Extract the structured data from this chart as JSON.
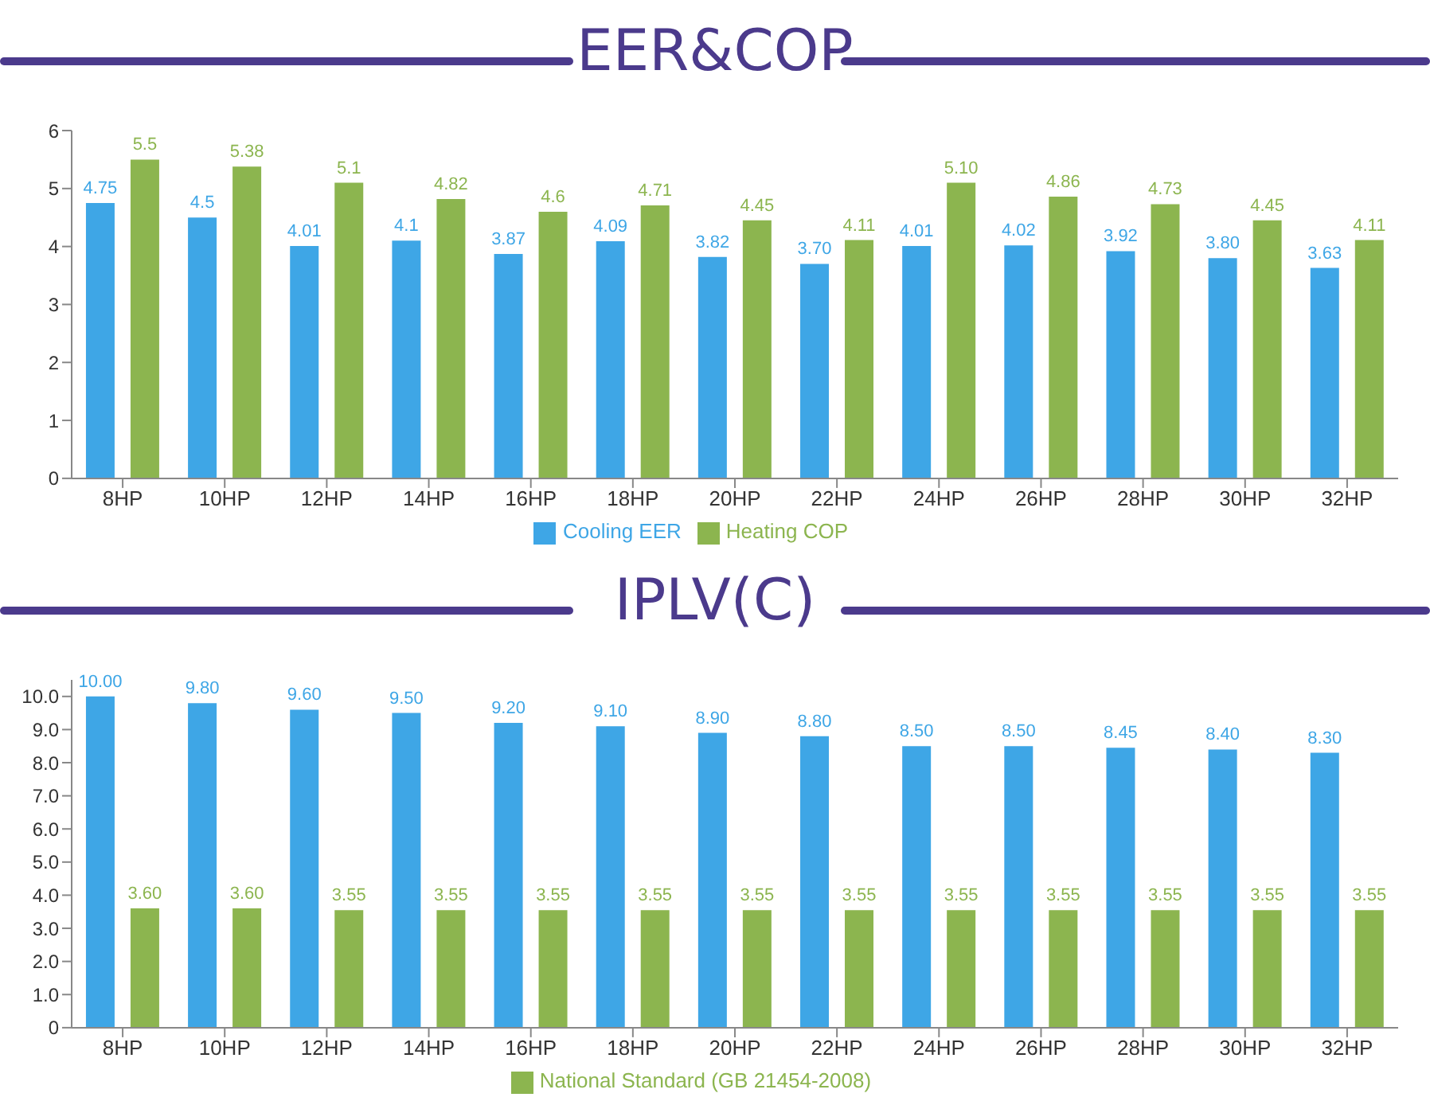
{
  "chart_data": [
    {
      "type": "bar",
      "title": "EER&COP",
      "categories": [
        "8HP",
        "10HP",
        "12HP",
        "14HP",
        "16HP",
        "18HP",
        "20HP",
        "22HP",
        "24HP",
        "26HP",
        "28HP",
        "30HP",
        "32HP"
      ],
      "series": [
        {
          "name": "Cooling EER",
          "color": "#3ea6e6",
          "values": [
            4.75,
            4.5,
            4.01,
            4.1,
            3.87,
            4.09,
            3.82,
            3.7,
            4.01,
            4.02,
            3.92,
            3.8,
            3.63
          ],
          "value_labels": [
            "4.75",
            "4.5",
            "4.01",
            "4.1",
            "3.87",
            "4.09",
            "3.82",
            "3.70",
            "4.01",
            "4.02",
            "3.92",
            "3.80",
            "3.63"
          ]
        },
        {
          "name": "Heating COP",
          "color": "#8cb54f",
          "values": [
            5.5,
            5.38,
            5.1,
            4.82,
            4.6,
            4.71,
            4.45,
            4.11,
            5.1,
            4.86,
            4.73,
            4.45,
            4.11
          ],
          "value_labels": [
            "5.5",
            "5.38",
            "5.1",
            "4.82",
            "4.6",
            "4.71",
            "4.45",
            "4.11",
            "5.10",
            "4.86",
            "4.73",
            "4.45",
            "4.11"
          ]
        }
      ],
      "ylim": [
        0,
        6
      ],
      "yticks": [
        0,
        1,
        2,
        3,
        4,
        5,
        6
      ],
      "grid": false,
      "legend": "bottom"
    },
    {
      "type": "bar",
      "title": "IPLV(C)",
      "categories": [
        "8HP",
        "10HP",
        "12HP",
        "14HP",
        "16HP",
        "18HP",
        "20HP",
        "22HP",
        "24HP",
        "26HP",
        "28HP",
        "30HP",
        "32HP"
      ],
      "series": [
        {
          "color": "#3ea6e6",
          "values": [
            10.0,
            9.8,
            9.6,
            9.5,
            9.2,
            9.1,
            8.9,
            8.8,
            8.5,
            8.5,
            8.45,
            8.4,
            8.3
          ],
          "value_labels": [
            "10.00",
            "9.80",
            "9.60",
            "9.50",
            "9.20",
            "9.10",
            "8.90",
            "8.80",
            "8.50",
            "8.50",
            "8.45",
            "8.40",
            "8.30"
          ]
        },
        {
          "name": "National Standard (GB 21454-2008)",
          "color": "#8cb54f",
          "values": [
            3.6,
            3.6,
            3.55,
            3.55,
            3.55,
            3.55,
            3.55,
            3.55,
            3.55,
            3.55,
            3.55,
            3.55,
            3.55
          ],
          "value_labels": [
            "3.60",
            "3.60",
            "3.55",
            "3.55",
            "3.55",
            "3.55",
            "3.55",
            "3.55",
            "3.55",
            "3.55",
            "3.55",
            "3.55",
            "3.55"
          ]
        }
      ],
      "ylim": [
        0,
        10.5
      ],
      "yticks": [
        {
          "value": 0,
          "label": "0"
        },
        {
          "value": 1,
          "label": "1.0"
        },
        {
          "value": 2,
          "label": "2.0"
        },
        {
          "value": 3,
          "label": "3.0"
        },
        {
          "value": 4,
          "label": "4.0"
        },
        {
          "value": 5,
          "label": "5.0"
        },
        {
          "value": 6,
          "label": "6.0"
        },
        {
          "value": 7,
          "label": "7.0"
        },
        {
          "value": 8,
          "label": "8.0"
        },
        {
          "value": 9,
          "label": "9.0"
        },
        {
          "value": 10,
          "label": "10.0"
        }
      ],
      "grid": false,
      "legend": "bottom"
    }
  ]
}
